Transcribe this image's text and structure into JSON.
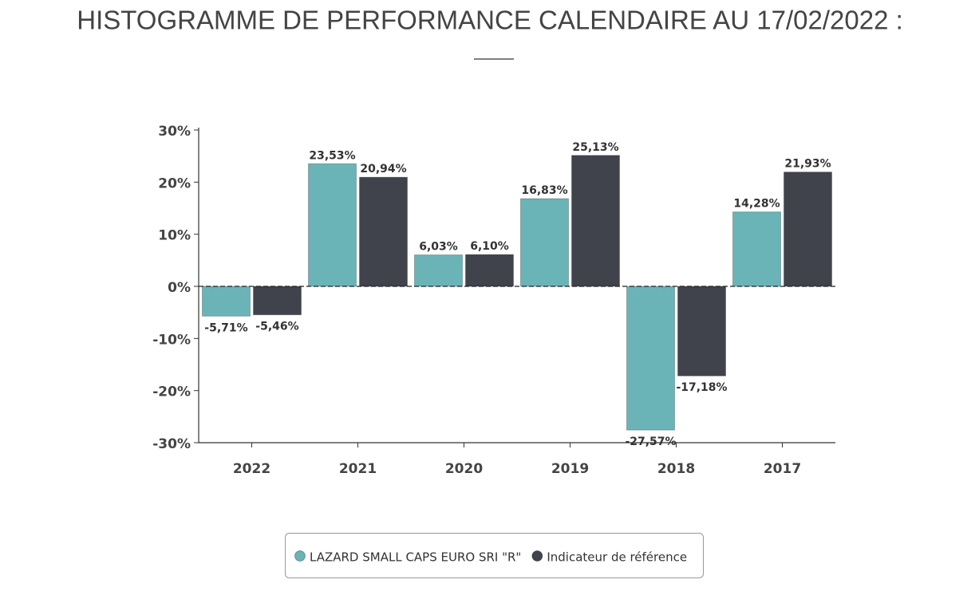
{
  "chart_data": {
    "type": "bar",
    "title": "HISTOGRAMME DE PERFORMANCE CALENDAIRE AU 17/02/2022 :",
    "categories": [
      "2022",
      "2021",
      "2020",
      "2019",
      "2018",
      "2017"
    ],
    "series": [
      {
        "name": "LAZARD SMALL CAPS EURO SRI \"R\"",
        "color": "#6ab4b8",
        "values": [
          -5.71,
          23.53,
          6.03,
          16.83,
          -27.57,
          14.28
        ],
        "value_labels": [
          "-5,71%",
          "23,53%",
          "6,03%",
          "16,83%",
          "-27,57%",
          "14,28%"
        ]
      },
      {
        "name": "Indicateur de référence",
        "color": "#40424c",
        "values": [
          -5.46,
          20.94,
          6.1,
          25.13,
          -17.18,
          21.93
        ],
        "value_labels": [
          "-5,46%",
          "20,94%",
          "6,10%",
          "25,13%",
          "-17,18%",
          "21,93%"
        ]
      }
    ],
    "ylim": [
      -30,
      30
    ],
    "yticks": [
      {
        "value": 30,
        "label": "30%"
      },
      {
        "value": 20,
        "label": "20%"
      },
      {
        "value": 10,
        "label": "10%"
      },
      {
        "value": 0,
        "label": "0%"
      },
      {
        "value": -10,
        "label": "-10%"
      },
      {
        "value": -20,
        "label": "-20%"
      },
      {
        "value": -30,
        "label": "-30%"
      }
    ],
    "legend": "bottom"
  }
}
